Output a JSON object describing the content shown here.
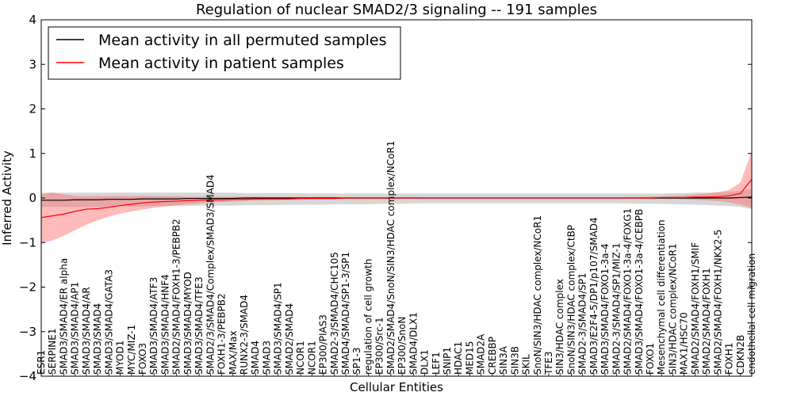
{
  "chart_data": {
    "type": "line",
    "title": "Regulation of nuclear SMAD2/3 signaling -- 191 samples",
    "xlabel": "Cellular Entities",
    "ylabel": "Inferred Activity",
    "ylim": [
      -4,
      4
    ],
    "yticks": [
      "−4",
      "−3",
      "−2",
      "−1",
      "0",
      "1",
      "2",
      "3",
      "4"
    ],
    "grid": false,
    "legend_position": "top-left",
    "colors": {
      "permuted": "#000000",
      "patient": "#ff0000",
      "patient_band": "#ff6666",
      "permuted_band": "#bdbdbd"
    },
    "categories": [
      "ESR1",
      "SERPINE1",
      "SMAD3/SMAD4/ER alpha",
      "SMAD3/SMAD4/AP1",
      "SMAD3/SMAD4/AR",
      "SMAD3/SMAD4",
      "SMAD3/SMAD4/GATA3",
      "MYOD1",
      "MYC/MIZ-1",
      "FOXO3",
      "SMAD3/SMAD4/ATF3",
      "SMAD3/SMAD4/HNF4",
      "SMAD2/SMAD4/FOXH1-3/PEBPB2",
      "SMAD3/SMAD4/MYOD",
      "SMAD3/SMAD4/TFE3",
      "SMAD2/3/SMAD4/Complex/SMAD3/SMAD4",
      "FOXH1-3/PEBPB2",
      "MAX/Max",
      "RUNX2-3/SMAD4",
      "SMAD4",
      "SMAD3",
      "SMAD3/SMAD4/SP1",
      "SMAD2/SMAD4",
      "NCOR1",
      "NCOR1",
      "EP300/PIAS3",
      "SMAD2-3/SMAD4/CHC105",
      "SMAD4/SMAD4/SP1-3/SP1",
      "SP1-3",
      "regulation of cell growth",
      "EP300/Src-1",
      "SMAD2/SMAD4/SnoN/SIN3/HDAC complex/NCoR1",
      "EP300/SnoN",
      "SMAD4/DLX1",
      "DLX1",
      "LEF1",
      "SNIP1",
      "HDAC1",
      "MED15",
      "SMAD2A",
      "CREBBP",
      "SIN3A",
      "SIN3B",
      "SKIL",
      "SnoN/SIN3/HDAC complex/NCoR1",
      "TFE3",
      "SIN3/HDAC complex",
      "SnoN/SIN3/HDAC complex/CtBP",
      "SMAD2-3/SMAD4/SP1",
      "SMAD3/E2F4-5/DP1/p107/SMAD4",
      "SMAD3/SMAD4/FOXO1-3a-4",
      "SMAD2-3/SMAD4/SP1/MIZ-1",
      "SMAD2/SMAD4/FOXO1-3a-4/FOXG1",
      "SMAD3/SMAD4/FOXO1-3a-4/CEBPB",
      "FOXO1",
      "Mesenchymal cell differentiation",
      "SIN3/HDAC complex/NCoR1",
      "MAX1/HSC70",
      "SMAD2/SMAD4/FOXH1/SMIF",
      "SMAD2/SMAD4/FOXH1",
      "SMAD2/SMAD4/FOXH1/NKX2-5",
      "FOXH1",
      "CDKN2B",
      "endothelial cell migration"
    ],
    "series": [
      {
        "name": "Mean activity in all permuted samples",
        "values": [
          -0.05,
          -0.05,
          -0.05,
          -0.04,
          -0.04,
          -0.04,
          -0.03,
          -0.03,
          -0.03,
          -0.02,
          -0.02,
          -0.02,
          -0.02,
          -0.01,
          -0.01,
          -0.01,
          -0.01,
          -0.01,
          0.0,
          0.0,
          0.0,
          0.0,
          0.0,
          0.0,
          0.0,
          0.0,
          0.0,
          0.0,
          0.0,
          0.0,
          0.0,
          0.0,
          0.0,
          0.0,
          0.0,
          0.0,
          0.0,
          0.0,
          0.0,
          0.0,
          0.0,
          0.0,
          0.0,
          0.0,
          0.0,
          0.0,
          0.0,
          0.0,
          0.0,
          0.0,
          0.0,
          0.0,
          0.0,
          0.0,
          0.0,
          0.0,
          0.0,
          0.0,
          0.0,
          0.0,
          0.0,
          0.0,
          0.01,
          0.02
        ]
      },
      {
        "name": "Mean activity in patient samples",
        "values": [
          -0.44,
          -0.4,
          -0.36,
          -0.3,
          -0.25,
          -0.24,
          -0.21,
          -0.17,
          -0.14,
          -0.11,
          -0.09,
          -0.08,
          -0.07,
          -0.06,
          -0.05,
          -0.04,
          -0.04,
          -0.03,
          -0.03,
          -0.02,
          -0.02,
          -0.02,
          -0.02,
          -0.01,
          -0.01,
          -0.01,
          -0.01,
          0.0,
          0.0,
          0.0,
          0.0,
          0.0,
          0.0,
          0.0,
          0.0,
          0.0,
          0.0,
          0.0,
          0.0,
          0.0,
          0.0,
          0.0,
          0.0,
          0.0,
          0.0,
          0.0,
          0.0,
          0.0,
          0.0,
          0.0,
          0.0,
          0.0,
          0.0,
          0.0,
          0.0,
          0.01,
          0.01,
          0.01,
          0.02,
          0.02,
          0.03,
          0.05,
          0.1,
          0.42
        ],
        "band_low": [
          -1.02,
          -0.95,
          -0.85,
          -0.72,
          -0.6,
          -0.5,
          -0.42,
          -0.35,
          -0.3,
          -0.26,
          -0.22,
          -0.19,
          -0.16,
          -0.14,
          -0.12,
          -0.1,
          -0.09,
          -0.08,
          -0.07,
          -0.06,
          -0.05,
          -0.05,
          -0.04,
          -0.04,
          -0.03,
          -0.03,
          -0.03,
          -0.02,
          -0.02,
          -0.02,
          -0.02,
          -0.02,
          -0.01,
          -0.01,
          -0.01,
          -0.01,
          -0.01,
          -0.01,
          -0.01,
          -0.01,
          -0.01,
          -0.01,
          -0.01,
          -0.01,
          -0.01,
          -0.01,
          -0.01,
          -0.01,
          -0.01,
          -0.01,
          -0.01,
          -0.01,
          -0.01,
          -0.01,
          -0.02,
          -0.02,
          -0.02,
          -0.03,
          -0.04,
          -0.05,
          -0.07,
          -0.1,
          -0.15,
          -0.22
        ],
        "band_high": [
          0.08,
          0.12,
          0.08,
          0.05,
          0.04,
          0.05,
          0.04,
          0.05,
          0.04,
          0.05,
          0.04,
          0.04,
          0.04,
          0.03,
          0.03,
          0.03,
          0.03,
          0.03,
          0.03,
          0.03,
          0.02,
          0.02,
          0.02,
          0.02,
          0.02,
          0.02,
          0.02,
          0.02,
          0.02,
          0.02,
          0.02,
          0.02,
          0.02,
          0.02,
          0.01,
          0.01,
          0.01,
          0.01,
          0.01,
          0.01,
          0.01,
          0.01,
          0.01,
          0.01,
          0.01,
          0.01,
          0.01,
          0.01,
          0.01,
          0.01,
          0.01,
          0.01,
          0.02,
          0.02,
          0.03,
          0.04,
          0.05,
          0.06,
          0.08,
          0.1,
          0.13,
          0.18,
          0.35,
          1.05
        ]
      }
    ],
    "permuted_band_low": [
      -0.2,
      -0.2,
      -0.2,
      -0.2,
      -0.2,
      -0.2,
      -0.19,
      -0.19,
      -0.19,
      -0.19,
      -0.18,
      -0.18,
      -0.18,
      -0.18,
      -0.17,
      -0.17,
      -0.17,
      -0.17,
      -0.16,
      -0.16,
      -0.16,
      -0.16,
      -0.15,
      -0.15,
      -0.15,
      -0.15,
      -0.14,
      -0.14,
      -0.14,
      -0.14,
      -0.13,
      -0.13,
      -0.13,
      -0.12,
      -0.12,
      -0.12,
      -0.12,
      -0.12,
      -0.12,
      -0.12,
      -0.12,
      -0.12,
      -0.12,
      -0.12,
      -0.12,
      -0.12,
      -0.12,
      -0.12,
      -0.12,
      -0.12,
      -0.12,
      -0.12,
      -0.12,
      -0.13,
      -0.13,
      -0.13,
      -0.14,
      -0.14,
      -0.15,
      -0.16,
      -0.17,
      -0.18,
      -0.2,
      -0.25
    ],
    "permuted_band_high": [
      0.12,
      0.12,
      0.12,
      0.12,
      0.12,
      0.12,
      0.12,
      0.12,
      0.12,
      0.12,
      0.12,
      0.12,
      0.12,
      0.12,
      0.12,
      0.12,
      0.12,
      0.12,
      0.11,
      0.11,
      0.11,
      0.11,
      0.11,
      0.11,
      0.1,
      0.1,
      0.1,
      0.1,
      0.1,
      0.1,
      0.1,
      0.1,
      0.1,
      0.1,
      0.1,
      0.1,
      0.1,
      0.1,
      0.1,
      0.1,
      0.1,
      0.1,
      0.1,
      0.1,
      0.1,
      0.1,
      0.1,
      0.1,
      0.1,
      0.1,
      0.1,
      0.1,
      0.1,
      0.1,
      0.1,
      0.1,
      0.11,
      0.11,
      0.12,
      0.12,
      0.13,
      0.14,
      0.16,
      0.2
    ]
  }
}
